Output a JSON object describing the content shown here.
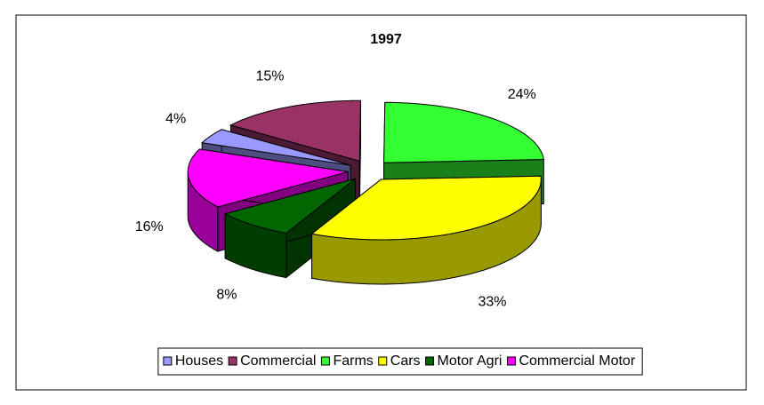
{
  "chart_data": {
    "type": "pie3d",
    "title": "1997",
    "categories": [
      "Houses",
      "Commercial",
      "Farms",
      "Cars",
      "Motor Agri",
      "Commercial Motor"
    ],
    "values": [
      4,
      15,
      24,
      33,
      8,
      16
    ],
    "value_labels": [
      "4%",
      "15%",
      "24%",
      "33%",
      "8%",
      "16%"
    ],
    "colors": [
      "#9999ff",
      "#993366",
      "#33ff33",
      "#ffff00",
      "#006600",
      "#ff00ff"
    ],
    "start_angle": 292,
    "exploded": true,
    "legend": "bottom"
  }
}
